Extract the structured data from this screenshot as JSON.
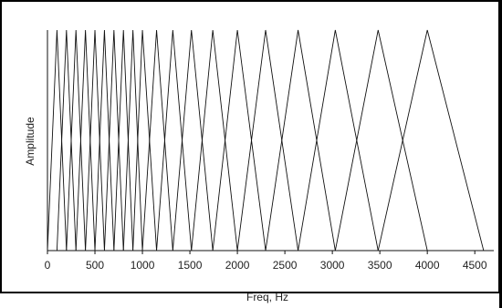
{
  "chart_data": {
    "type": "line",
    "title": "",
    "xlabel": "Freq, Hz",
    "ylabel": "Amplitude",
    "xlim": [
      0,
      4700
    ],
    "ylim": [
      0,
      1
    ],
    "xticks": [
      0,
      500,
      1000,
      1500,
      2000,
      2500,
      3000,
      3500,
      4000,
      4500
    ],
    "grid": false,
    "filter_peaks_hz": [
      100,
      200,
      300,
      400,
      500,
      600,
      700,
      800,
      900,
      1000,
      1149,
      1320,
      1516,
      1741,
      2000,
      2297,
      2639,
      3031,
      3482,
      4000
    ],
    "filter_bounds_hz": [
      0,
      4593
    ],
    "series": []
  },
  "colors": {
    "line": "#111111",
    "frame": "#000000",
    "background": "#ffffff"
  }
}
